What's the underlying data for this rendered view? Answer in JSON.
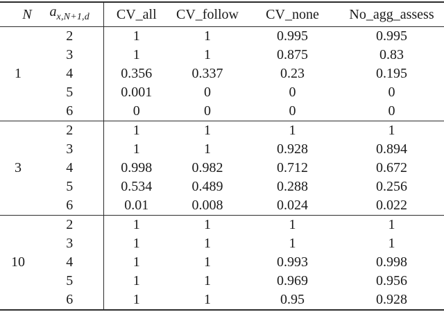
{
  "colors": {
    "text": "#1a1a1a",
    "rule": "#2b2b2b",
    "background": "#ffffff"
  },
  "table": {
    "headers": {
      "n": "N",
      "a_base": "a",
      "a_sub": "x,N+1,d",
      "cv_all": "CV_all",
      "cv_follow": "CV_follow",
      "cv_none": "CV_none",
      "no_agg_assess": "No_agg_assess"
    },
    "groups": [
      {
        "n": "1",
        "rows": [
          {
            "a": "2",
            "cv_all": "1",
            "cv_follow": "1",
            "cv_none": "0.995",
            "no_agg_assess": "0.995"
          },
          {
            "a": "3",
            "cv_all": "1",
            "cv_follow": "1",
            "cv_none": "0.875",
            "no_agg_assess": "0.83"
          },
          {
            "a": "4",
            "cv_all": "0.356",
            "cv_follow": "0.337",
            "cv_none": "0.23",
            "no_agg_assess": "0.195"
          },
          {
            "a": "5",
            "cv_all": "0.001",
            "cv_follow": "0",
            "cv_none": "0",
            "no_agg_assess": "0"
          },
          {
            "a": "6",
            "cv_all": "0",
            "cv_follow": "0",
            "cv_none": "0",
            "no_agg_assess": "0"
          }
        ]
      },
      {
        "n": "3",
        "rows": [
          {
            "a": "2",
            "cv_all": "1",
            "cv_follow": "1",
            "cv_none": "1",
            "no_agg_assess": "1"
          },
          {
            "a": "3",
            "cv_all": "1",
            "cv_follow": "1",
            "cv_none": "0.928",
            "no_agg_assess": "0.894"
          },
          {
            "a": "4",
            "cv_all": "0.998",
            "cv_follow": "0.982",
            "cv_none": "0.712",
            "no_agg_assess": "0.672"
          },
          {
            "a": "5",
            "cv_all": "0.534",
            "cv_follow": "0.489",
            "cv_none": "0.288",
            "no_agg_assess": "0.256"
          },
          {
            "a": "6",
            "cv_all": "0.01",
            "cv_follow": "0.008",
            "cv_none": "0.024",
            "no_agg_assess": "0.022"
          }
        ]
      },
      {
        "n": "10",
        "rows": [
          {
            "a": "2",
            "cv_all": "1",
            "cv_follow": "1",
            "cv_none": "1",
            "no_agg_assess": "1"
          },
          {
            "a": "3",
            "cv_all": "1",
            "cv_follow": "1",
            "cv_none": "1",
            "no_agg_assess": "1"
          },
          {
            "a": "4",
            "cv_all": "1",
            "cv_follow": "1",
            "cv_none": "0.993",
            "no_agg_assess": "0.998"
          },
          {
            "a": "5",
            "cv_all": "1",
            "cv_follow": "1",
            "cv_none": "0.969",
            "no_agg_assess": "0.956"
          },
          {
            "a": "6",
            "cv_all": "1",
            "cv_follow": "1",
            "cv_none": "0.95",
            "no_agg_assess": "0.928"
          }
        ]
      }
    ]
  }
}
